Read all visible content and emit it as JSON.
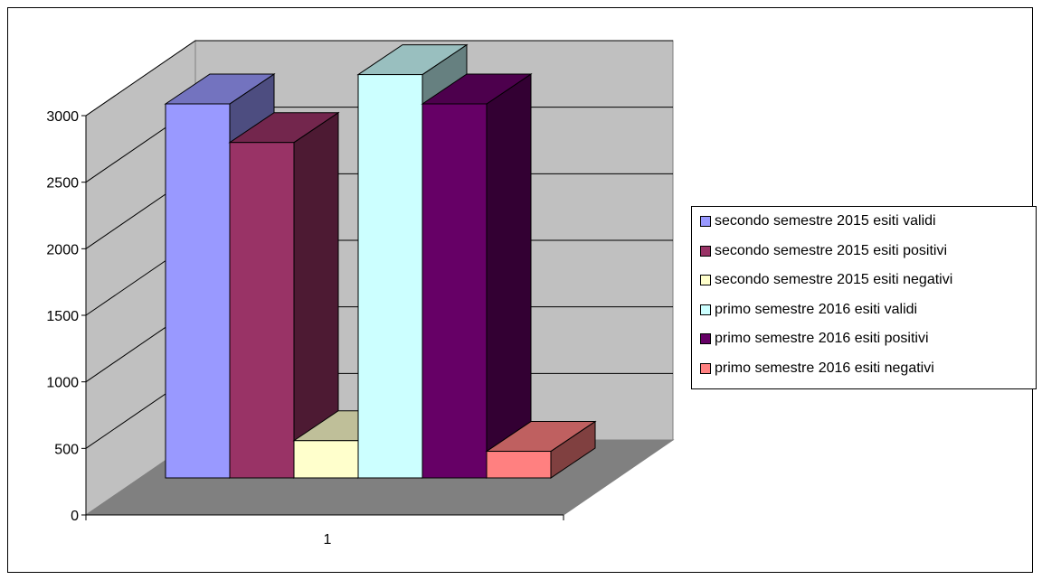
{
  "chart_data": {
    "type": "bar",
    "style": "3d-clustered-column",
    "categories": [
      "1"
    ],
    "series": [
      {
        "name": "secondo semestre 2015 esiti validi",
        "values": [
          2810
        ],
        "color": "#9999ff"
      },
      {
        "name": "secondo semestre 2015 esiti positivi",
        "values": [
          2520
        ],
        "color": "#993366"
      },
      {
        "name": "secondo semestre 2015 esiti negativi",
        "values": [
          280
        ],
        "color": "#ffffcc"
      },
      {
        "name": "primo semestre 2016 esiti validi",
        "values": [
          3030
        ],
        "color": "#ccffff"
      },
      {
        "name": "primo semestre 2016 esiti positivi",
        "values": [
          2810
        ],
        "color": "#660066"
      },
      {
        "name": "primo semestre 2016 esiti negativi",
        "values": [
          200
        ],
        "color": "#ff8080"
      }
    ],
    "ylim": [
      0,
      3000
    ],
    "yticks": [
      "0",
      "500",
      "1000",
      "1500",
      "2000",
      "2500",
      "3000"
    ],
    "title": "",
    "xlabel": "",
    "ylabel": "",
    "grid": true,
    "legend_position": "right",
    "wall_color": "#c0c0c0",
    "floor_color": "#808080"
  }
}
